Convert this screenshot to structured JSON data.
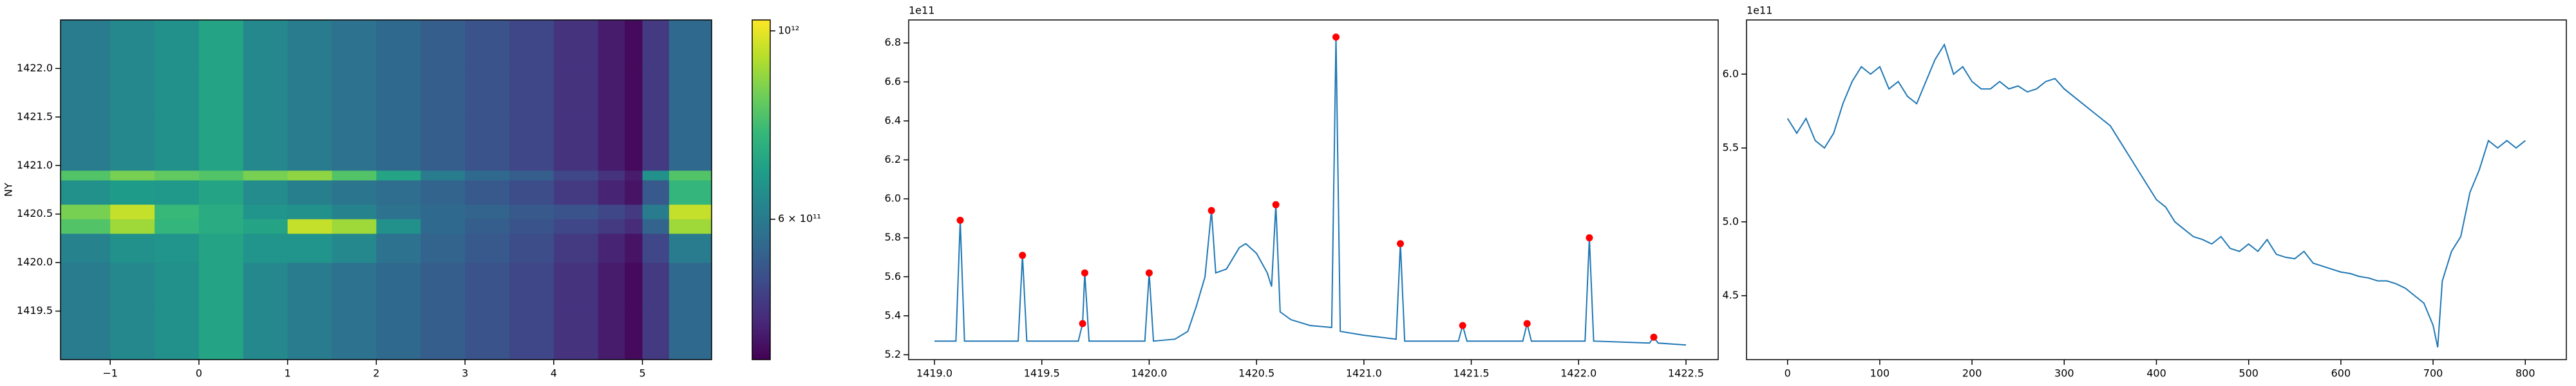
{
  "chart_data": [
    {
      "type": "heatmap",
      "ylabel": "NY",
      "x_edges": [
        -1.56,
        -1.0,
        -0.5,
        0,
        0.5,
        1,
        1.5,
        2,
        2.5,
        3,
        3.5,
        4,
        4.5,
        4.8,
        5.0,
        5.3,
        5.78
      ],
      "y_edges": [
        1419.0,
        1419.5,
        1420.0,
        1420.3,
        1420.45,
        1420.6,
        1420.85,
        1420.95,
        1421.5,
        1422.0,
        1422.5
      ],
      "values": [
        [
          600000000000.0,
          630000000000.0,
          650000000000.0,
          700000000000.0,
          630000000000.0,
          600000000000.0,
          580000000000.0,
          560000000000.0,
          540000000000.0,
          520000000000.0,
          500000000000.0,
          470000000000.0,
          440000000000.0,
          420000000000.0,
          480000000000.0,
          560000000000.0
        ],
        [
          600000000000.0,
          630000000000.0,
          650000000000.0,
          700000000000.0,
          630000000000.0,
          600000000000.0,
          580000000000.0,
          560000000000.0,
          540000000000.0,
          520000000000.0,
          500000000000.0,
          470000000000.0,
          440000000000.0,
          420000000000.0,
          480000000000.0,
          560000000000.0
        ],
        [
          620000000000.0,
          650000000000.0,
          660000000000.0,
          700000000000.0,
          660000000000.0,
          660000000000.0,
          630000000000.0,
          580000000000.0,
          550000000000.0,
          530000000000.0,
          510000000000.0,
          480000000000.0,
          450000000000.0,
          430000000000.0,
          500000000000.0,
          600000000000.0
        ],
        [
          800000000000.0,
          900000000000.0,
          750000000000.0,
          720000000000.0,
          700000000000.0,
          950000000000.0,
          900000000000.0,
          650000000000.0,
          560000000000.0,
          540000000000.0,
          520000000000.0,
          500000000000.0,
          480000000000.0,
          460000000000.0,
          550000000000.0,
          900000000000.0
        ],
        [
          850000000000.0,
          950000000000.0,
          760000000000.0,
          720000000000.0,
          660000000000.0,
          650000000000.0,
          620000000000.0,
          580000000000.0,
          560000000000.0,
          550000000000.0,
          530000000000.0,
          520000000000.0,
          500000000000.0,
          480000000000.0,
          600000000000.0,
          950000000000.0
        ],
        [
          650000000000.0,
          680000000000.0,
          670000000000.0,
          700000000000.0,
          640000000000.0,
          610000000000.0,
          590000000000.0,
          570000000000.0,
          550000000000.0,
          530000000000.0,
          510000000000.0,
          480000000000.0,
          450000000000.0,
          430000000000.0,
          530000000000.0,
          750000000000.0
        ],
        [
          800000000000.0,
          850000000000.0,
          820000000000.0,
          800000000000.0,
          850000000000.0,
          880000000000.0,
          800000000000.0,
          700000000000.0,
          600000000000.0,
          560000000000.0,
          540000000000.0,
          500000000000.0,
          470000000000.0,
          440000000000.0,
          650000000000.0,
          800000000000.0
        ],
        [
          600000000000.0,
          630000000000.0,
          650000000000.0,
          700000000000.0,
          630000000000.0,
          600000000000.0,
          580000000000.0,
          560000000000.0,
          540000000000.0,
          520000000000.0,
          500000000000.0,
          470000000000.0,
          440000000000.0,
          420000000000.0,
          480000000000.0,
          560000000000.0
        ],
        [
          600000000000.0,
          630000000000.0,
          650000000000.0,
          700000000000.0,
          630000000000.0,
          600000000000.0,
          580000000000.0,
          560000000000.0,
          540000000000.0,
          520000000000.0,
          500000000000.0,
          470000000000.0,
          440000000000.0,
          420000000000.0,
          480000000000.0,
          560000000000.0
        ],
        [
          600000000000.0,
          630000000000.0,
          650000000000.0,
          700000000000.0,
          630000000000.0,
          600000000000.0,
          580000000000.0,
          560000000000.0,
          540000000000.0,
          520000000000.0,
          500000000000.0,
          470000000000.0,
          440000000000.0,
          420000000000.0,
          480000000000.0,
          560000000000.0
        ]
      ],
      "xlim": [
        -1.56,
        5.78
      ],
      "ylim": [
        1419.0,
        1422.5
      ],
      "xticks": [
        {
          "value": -1,
          "label": "−1"
        },
        0,
        1,
        2,
        3,
        4,
        5
      ],
      "yticks": [
        1419.5,
        {
          "value": 1420,
          "label": "1420.0"
        },
        1420.5,
        {
          "value": 1421,
          "label": "1421.0"
        },
        1421.5,
        {
          "value": 1422,
          "label": "1422.0"
        }
      ],
      "colormap": [
        "#440154",
        "#482878",
        "#3e4989",
        "#31688e",
        "#26828e",
        "#1f9e89",
        "#35b779",
        "#6ece58",
        "#b5de2b",
        "#fde725"
      ],
      "colorbar": {
        "log": true,
        "clim": [
          410000000000.0,
          1030000000000.0
        ],
        "ticks": [
          {
            "value": 1000000000000.0,
            "label": "10¹²"
          },
          {
            "value": 600000000000.0,
            "label": "6 × 10¹¹"
          }
        ]
      }
    },
    {
      "type": "line",
      "y_offset_label": "1e11",
      "series": [
        {
          "kind": "line",
          "color": "#1f77b4",
          "x": [
            1419.0,
            1419.1,
            1419.12,
            1419.14,
            1419.39,
            1419.41,
            1419.43,
            1419.67,
            1419.69,
            1419.7,
            1419.72,
            1419.98,
            1420.0,
            1420.02,
            1420.12,
            1420.18,
            1420.22,
            1420.26,
            1420.29,
            1420.31,
            1420.36,
            1420.42,
            1420.45,
            1420.5,
            1420.55,
            1420.57,
            1420.59,
            1420.61,
            1420.66,
            1420.75,
            1420.85,
            1420.87,
            1420.89,
            1421.0,
            1421.15,
            1421.17,
            1421.19,
            1421.44,
            1421.46,
            1421.48,
            1421.74,
            1421.76,
            1421.78,
            1422.03,
            1422.05,
            1422.07,
            1422.33,
            1422.35,
            1422.37,
            1422.5
          ],
          "values": [
            5.27,
            5.27,
            5.89,
            5.27,
            5.27,
            5.71,
            5.27,
            5.27,
            5.36,
            5.62,
            5.27,
            5.27,
            5.62,
            5.27,
            5.28,
            5.32,
            5.45,
            5.6,
            5.94,
            5.62,
            5.64,
            5.75,
            5.77,
            5.72,
            5.62,
            5.55,
            5.97,
            5.42,
            5.38,
            5.35,
            5.34,
            6.83,
            5.32,
            5.3,
            5.28,
            5.77,
            5.27,
            5.27,
            5.35,
            5.27,
            5.27,
            5.36,
            5.27,
            5.27,
            5.8,
            5.27,
            5.26,
            5.29,
            5.26,
            5.25
          ]
        },
        {
          "kind": "scatter",
          "color": "red",
          "x": [
            1419.12,
            1419.41,
            1419.69,
            1419.7,
            1420.0,
            1420.29,
            1420.59,
            1420.87,
            1421.17,
            1421.46,
            1421.76,
            1422.05,
            1422.35
          ],
          "values": [
            5.89,
            5.71,
            5.36,
            5.62,
            5.62,
            5.94,
            5.97,
            6.83,
            5.77,
            5.35,
            5.36,
            5.8,
            5.29
          ]
        }
      ],
      "xlim": [
        1418.88,
        1422.65
      ],
      "ylim": [
        5.175,
        6.918
      ],
      "xticks": [
        {
          "value": 1419,
          "label": "1419.0"
        },
        1419.5,
        {
          "value": 1420,
          "label": "1420.0"
        },
        1420.5,
        {
          "value": 1421,
          "label": "1421.0"
        },
        1421.5,
        {
          "value": 1422,
          "label": "1422.0"
        },
        1422.5
      ],
      "yticks": [
        5.2,
        5.4,
        5.6,
        5.8,
        {
          "value": 6,
          "label": "6.0"
        },
        6.2,
        6.4,
        6.6,
        6.8
      ]
    },
    {
      "type": "line",
      "y_offset_label": "1e11",
      "series": [
        {
          "kind": "line",
          "color": "#1f77b4",
          "x": [
            0,
            10,
            20,
            30,
            40,
            50,
            60,
            70,
            80,
            90,
            100,
            110,
            120,
            130,
            140,
            150,
            160,
            170,
            180,
            190,
            200,
            210,
            220,
            230,
            240,
            250,
            260,
            270,
            280,
            290,
            300,
            310,
            320,
            330,
            340,
            350,
            360,
            370,
            380,
            390,
            400,
            410,
            420,
            430,
            440,
            450,
            460,
            470,
            480,
            490,
            500,
            510,
            520,
            530,
            540,
            550,
            560,
            570,
            580,
            590,
            600,
            610,
            620,
            630,
            640,
            650,
            660,
            670,
            680,
            690,
            700,
            705,
            710,
            720,
            730,
            740,
            750,
            760,
            770,
            780,
            790,
            800
          ],
          "values": [
            5.7,
            5.6,
            5.7,
            5.55,
            5.5,
            5.6,
            5.8,
            5.95,
            6.05,
            6.0,
            6.05,
            5.9,
            5.95,
            5.85,
            5.8,
            5.95,
            6.1,
            6.2,
            6.0,
            6.05,
            5.95,
            5.9,
            5.9,
            5.95,
            5.9,
            5.92,
            5.88,
            5.9,
            5.95,
            5.97,
            5.9,
            5.85,
            5.8,
            5.75,
            5.7,
            5.65,
            5.55,
            5.45,
            5.35,
            5.25,
            5.15,
            5.1,
            5.0,
            4.95,
            4.9,
            4.88,
            4.85,
            4.9,
            4.82,
            4.8,
            4.85,
            4.8,
            4.88,
            4.78,
            4.76,
            4.75,
            4.8,
            4.72,
            4.7,
            4.68,
            4.66,
            4.65,
            4.63,
            4.62,
            4.6,
            4.6,
            4.58,
            4.55,
            4.5,
            4.45,
            4.3,
            4.15,
            4.6,
            4.8,
            4.9,
            5.2,
            5.35,
            5.55,
            5.5,
            5.55,
            5.5,
            5.55
          ]
        }
      ],
      "xlim": [
        -44.5,
        844.5
      ],
      "ylim": [
        4.067,
        6.367
      ],
      "xticks": [
        0,
        100,
        200,
        300,
        400,
        500,
        600,
        700,
        800
      ],
      "yticks": [
        4.5,
        {
          "value": 5,
          "label": "5.0"
        },
        5.5,
        {
          "value": 6,
          "label": "6.0"
        }
      ]
    }
  ]
}
